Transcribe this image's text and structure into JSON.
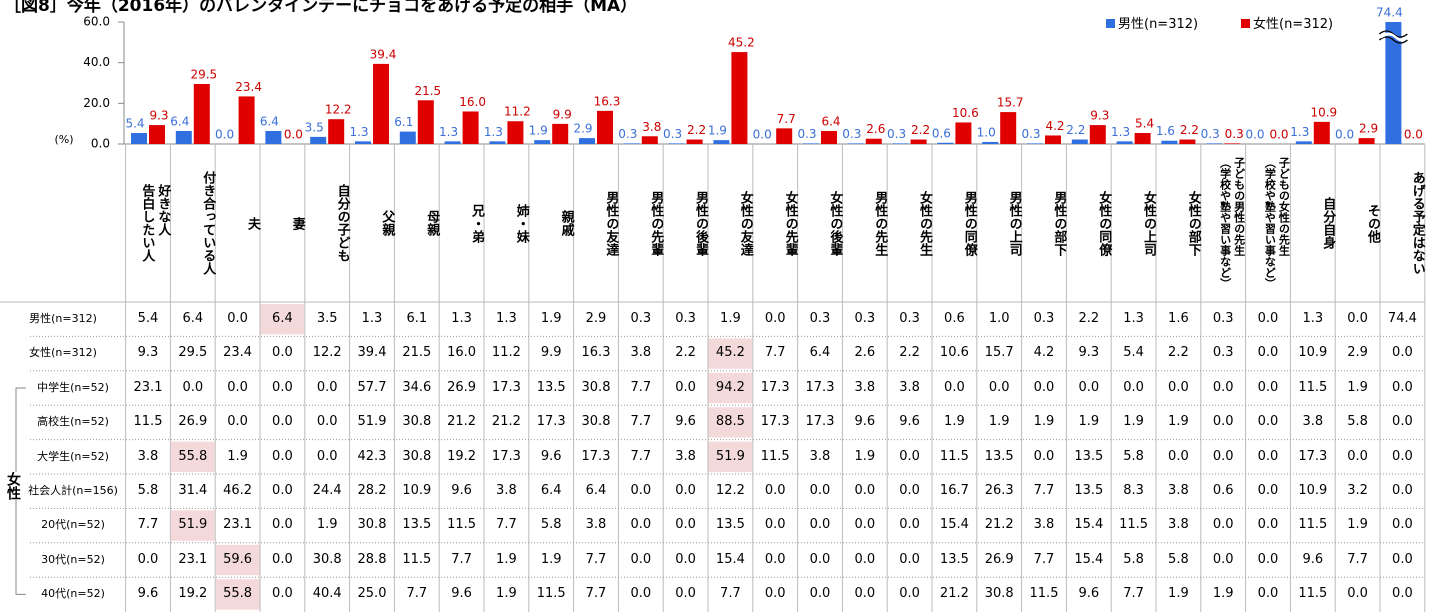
{
  "title": "［図8］今年（2016年）のバレンタインデーにチョコをあげる予定の相手（MA）",
  "chart_data": {
    "type": "bar",
    "ylabel": "(%)",
    "categories": [
      "好きな人\n告白したい人",
      "付き合っている人",
      "夫",
      "妻",
      "自分の子ども",
      "父親",
      "母親",
      "兄・弟",
      "姉・妹",
      "親戚",
      "男性の友達",
      "男性の先輩",
      "男性の後輩",
      "女性の友達",
      "女性の先輩",
      "女性の後輩",
      "男性の先生",
      "女性の先生",
      "男性の同僚",
      "男性の上司",
      "男性の部下",
      "女性の同僚",
      "女性の上司",
      "女性の部下",
      "子どもの男性の先生\n（学校や塾や習い事など）",
      "子どもの女性の先生\n（学校や塾や習い事など）",
      "自分自身",
      "その他",
      "あげる予定はない"
    ],
    "series": [
      {
        "name": "男性(n=312)",
        "color": "#2f6fe0",
        "label_color": "#3a6fd8",
        "values": [
          5.4,
          6.4,
          0.0,
          6.4,
          3.5,
          1.3,
          6.1,
          1.3,
          1.3,
          1.9,
          2.9,
          0.3,
          0.3,
          1.9,
          0.0,
          0.3,
          0.3,
          0.3,
          0.6,
          1.0,
          0.3,
          2.2,
          1.3,
          1.6,
          0.3,
          0.0,
          1.3,
          0.0,
          74.4
        ],
        "value_labels": [
          "5.4",
          "6.4",
          "0.0",
          "6.4",
          "3.5",
          "1.3",
          "6.1",
          "1.3",
          "1.3",
          "1.9",
          "2.9",
          "0.3",
          "0.3",
          "1.9",
          "0.0",
          "0.3",
          "0.3",
          "0.3",
          "0.6",
          "1.0",
          "0.3",
          "2.2",
          "1.3",
          "1.6",
          "0.3",
          "0.0",
          "1.3",
          "0.0",
          "74.4"
        ]
      },
      {
        "name": "女性(n=312)",
        "color": "#e00000",
        "label_color": "#cc0000",
        "values": [
          9.3,
          29.5,
          23.4,
          0.0,
          12.2,
          39.4,
          21.5,
          16.0,
          11.2,
          9.9,
          16.3,
          3.8,
          2.2,
          45.2,
          7.7,
          6.4,
          2.6,
          2.2,
          10.6,
          15.7,
          4.2,
          9.3,
          5.4,
          2.2,
          0.3,
          0.0,
          10.9,
          2.9,
          0.0
        ],
        "value_labels": [
          "9.3",
          "29.5",
          "23.4",
          "0.0",
          "12.2",
          "39.4",
          "21.5",
          "16.0",
          "11.2",
          "9.9",
          "16.3",
          "3.8",
          "2.2",
          "45.2",
          "7.7",
          "6.4",
          "2.6",
          "2.2",
          "10.6",
          "15.7",
          "4.2",
          "9.3",
          "5.4",
          "2.2",
          "0.3",
          "0.0",
          "10.9",
          "2.9",
          "0.0"
        ]
      }
    ],
    "ylim": [
      0,
      60
    ],
    "yticks": [
      {
        "value": 0,
        "label": "0.0"
      },
      {
        "value": 20,
        "label": "20.0"
      },
      {
        "value": 40,
        "label": "40.0"
      },
      {
        "value": 60,
        "label": "60.0"
      }
    ],
    "legend": "top-right"
  },
  "table": {
    "rows": [
      {
        "label": "男性(n=312)",
        "highlight": [
          3
        ],
        "cells": [
          "5.4",
          "6.4",
          "0.0",
          "6.4",
          "3.5",
          "1.3",
          "6.1",
          "1.3",
          "1.3",
          "1.9",
          "2.9",
          "0.3",
          "0.3",
          "1.9",
          "0.0",
          "0.3",
          "0.3",
          "0.3",
          "0.6",
          "1.0",
          "0.3",
          "2.2",
          "1.3",
          "1.6",
          "0.3",
          "0.0",
          "1.3",
          "0.0",
          "74.4"
        ]
      },
      {
        "label": "女性(n=312)",
        "highlight": [
          13
        ],
        "cells": [
          "9.3",
          "29.5",
          "23.4",
          "0.0",
          "12.2",
          "39.4",
          "21.5",
          "16.0",
          "11.2",
          "9.9",
          "16.3",
          "3.8",
          "2.2",
          "45.2",
          "7.7",
          "6.4",
          "2.6",
          "2.2",
          "10.6",
          "15.7",
          "4.2",
          "9.3",
          "5.4",
          "2.2",
          "0.3",
          "0.0",
          "10.9",
          "2.9",
          "0.0"
        ]
      }
    ],
    "group": {
      "label": "女性",
      "rows": [
        {
          "label": "中学生(n=52)",
          "highlight": [
            13
          ],
          "cells": [
            "23.1",
            "0.0",
            "0.0",
            "0.0",
            "0.0",
            "57.7",
            "34.6",
            "26.9",
            "17.3",
            "13.5",
            "30.8",
            "7.7",
            "0.0",
            "94.2",
            "17.3",
            "17.3",
            "3.8",
            "3.8",
            "0.0",
            "0.0",
            "0.0",
            "0.0",
            "0.0",
            "0.0",
            "0.0",
            "0.0",
            "11.5",
            "1.9",
            "0.0"
          ]
        },
        {
          "label": "高校生(n=52)",
          "highlight": [
            13
          ],
          "cells": [
            "11.5",
            "26.9",
            "0.0",
            "0.0",
            "0.0",
            "51.9",
            "30.8",
            "21.2",
            "21.2",
            "17.3",
            "30.8",
            "7.7",
            "9.6",
            "88.5",
            "17.3",
            "17.3",
            "9.6",
            "9.6",
            "1.9",
            "1.9",
            "1.9",
            "1.9",
            "1.9",
            "1.9",
            "0.0",
            "0.0",
            "3.8",
            "5.8",
            "0.0"
          ]
        },
        {
          "label": "大学生(n=52)",
          "highlight": [
            1,
            13
          ],
          "cells": [
            "3.8",
            "55.8",
            "1.9",
            "0.0",
            "0.0",
            "42.3",
            "30.8",
            "19.2",
            "17.3",
            "9.6",
            "17.3",
            "7.7",
            "3.8",
            "51.9",
            "11.5",
            "3.8",
            "1.9",
            "0.0",
            "11.5",
            "13.5",
            "0.0",
            "13.5",
            "5.8",
            "0.0",
            "0.0",
            "0.0",
            "17.3",
            "0.0",
            "0.0"
          ]
        },
        {
          "label": "社会人計(n=156)",
          "highlight": [],
          "cells": [
            "5.8",
            "31.4",
            "46.2",
            "0.0",
            "24.4",
            "28.2",
            "10.9",
            "9.6",
            "3.8",
            "6.4",
            "6.4",
            "0.0",
            "0.0",
            "12.2",
            "0.0",
            "0.0",
            "0.0",
            "0.0",
            "16.7",
            "26.3",
            "7.7",
            "13.5",
            "8.3",
            "3.8",
            "0.6",
            "0.0",
            "10.9",
            "3.2",
            "0.0"
          ]
        },
        {
          "label": "20代(n=52)",
          "highlight": [
            1
          ],
          "cells": [
            "7.7",
            "51.9",
            "23.1",
            "0.0",
            "1.9",
            "30.8",
            "13.5",
            "11.5",
            "7.7",
            "5.8",
            "3.8",
            "0.0",
            "0.0",
            "13.5",
            "0.0",
            "0.0",
            "0.0",
            "0.0",
            "15.4",
            "21.2",
            "3.8",
            "15.4",
            "11.5",
            "3.8",
            "0.0",
            "0.0",
            "11.5",
            "1.9",
            "0.0"
          ]
        },
        {
          "label": "30代(n=52)",
          "highlight": [
            2
          ],
          "cells": [
            "0.0",
            "23.1",
            "59.6",
            "0.0",
            "30.8",
            "28.8",
            "11.5",
            "7.7",
            "1.9",
            "1.9",
            "7.7",
            "0.0",
            "0.0",
            "15.4",
            "0.0",
            "0.0",
            "0.0",
            "0.0",
            "13.5",
            "26.9",
            "7.7",
            "15.4",
            "5.8",
            "5.8",
            "0.0",
            "0.0",
            "9.6",
            "7.7",
            "0.0"
          ]
        },
        {
          "label": "40代(n=52)",
          "highlight": [
            2
          ],
          "cells": [
            "9.6",
            "19.2",
            "55.8",
            "0.0",
            "40.4",
            "25.0",
            "7.7",
            "9.6",
            "1.9",
            "11.5",
            "7.7",
            "0.0",
            "0.0",
            "7.7",
            "0.0",
            "0.0",
            "0.0",
            "0.0",
            "21.2",
            "30.8",
            "11.5",
            "9.6",
            "7.7",
            "1.9",
            "1.9",
            "0.0",
            "11.5",
            "0.0",
            "0.0"
          ]
        }
      ]
    }
  }
}
